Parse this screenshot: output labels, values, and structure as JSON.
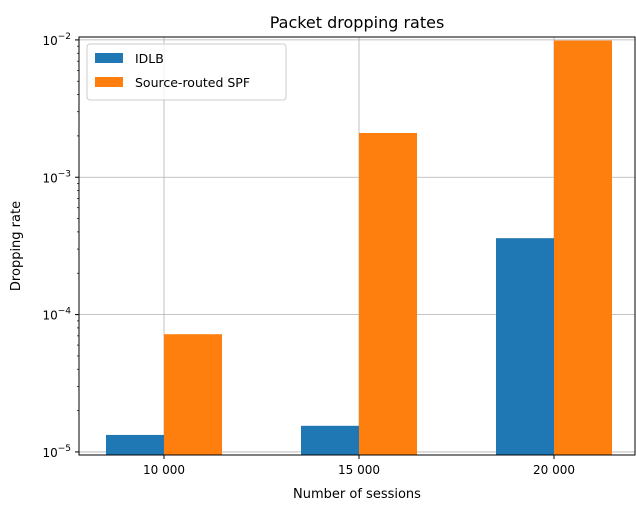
{
  "chart_data": {
    "type": "bar",
    "title": "Packet dropping rates",
    "xlabel": "Number of sessions",
    "ylabel": "Dropping rate",
    "yscale": "log",
    "ylim": [
      9.5e-06,
      0.0105
    ],
    "categories": [
      "10 000",
      "15 000",
      "20 000"
    ],
    "series": [
      {
        "name": "IDLB",
        "color": "#1f77b4",
        "values": [
          1.33e-05,
          1.55e-05,
          0.00036
        ]
      },
      {
        "name": "Source-routed SPF",
        "color": "#ff7f0e",
        "values": [
          7.2e-05,
          0.0021,
          0.0099
        ]
      }
    ],
    "yticks": [
      {
        "base": "10",
        "exp": "−5"
      },
      {
        "base": "10",
        "exp": "−4"
      },
      {
        "base": "10",
        "exp": "−3"
      },
      {
        "base": "10",
        "exp": "−2"
      }
    ],
    "ytick_values": [
      1e-05,
      0.0001,
      0.001,
      0.01
    ],
    "grid": true,
    "legend_position": "top-left"
  }
}
